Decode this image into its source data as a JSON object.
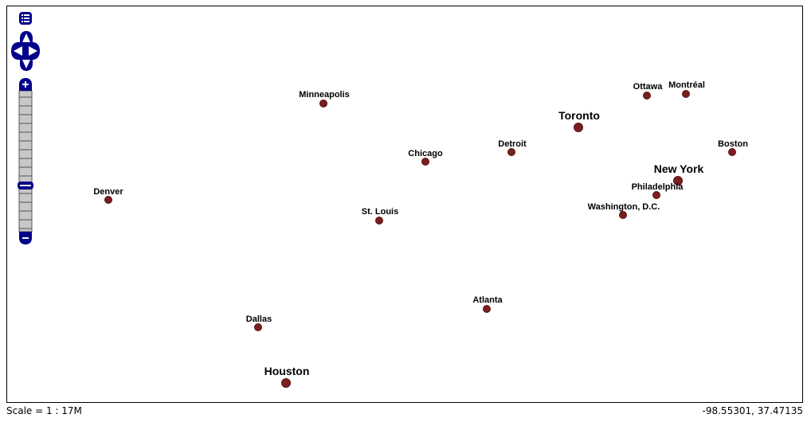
{
  "map": {
    "cities": [
      {
        "name": "Minneapolis",
        "size": "small"
      },
      {
        "name": "Ottawa",
        "size": "small"
      },
      {
        "name": "Montréal",
        "size": "small"
      },
      {
        "name": "Toronto",
        "size": "large"
      },
      {
        "name": "Detroit",
        "size": "small"
      },
      {
        "name": "Chicago",
        "size": "small"
      },
      {
        "name": "Boston",
        "size": "small"
      },
      {
        "name": "New York",
        "size": "large"
      },
      {
        "name": "Philadelphia",
        "size": "small"
      },
      {
        "name": "Denver",
        "size": "small"
      },
      {
        "name": "St. Louis",
        "size": "small"
      },
      {
        "name": "Washington, D.C.",
        "size": "small"
      },
      {
        "name": "Atlanta",
        "size": "small"
      },
      {
        "name": "Dallas",
        "size": "small"
      },
      {
        "name": "Houston",
        "size": "large"
      }
    ],
    "dot_color": "#7a1e1e",
    "control_color": "#00008b"
  },
  "controls": {
    "layer_switcher_icon": "list-icon",
    "pan_up_icon": "arrow-up-icon",
    "pan_down_icon": "arrow-down-icon",
    "pan_left_icon": "arrow-left-icon",
    "pan_right_icon": "arrow-right-icon",
    "zoom_in_icon": "plus-icon",
    "zoom_out_icon": "minus-icon",
    "zoom_slider_icon": "slider-icon"
  },
  "footer": {
    "scale": "Scale = 1 : 17M",
    "coordinates": "-98.55301, 37.47135"
  }
}
